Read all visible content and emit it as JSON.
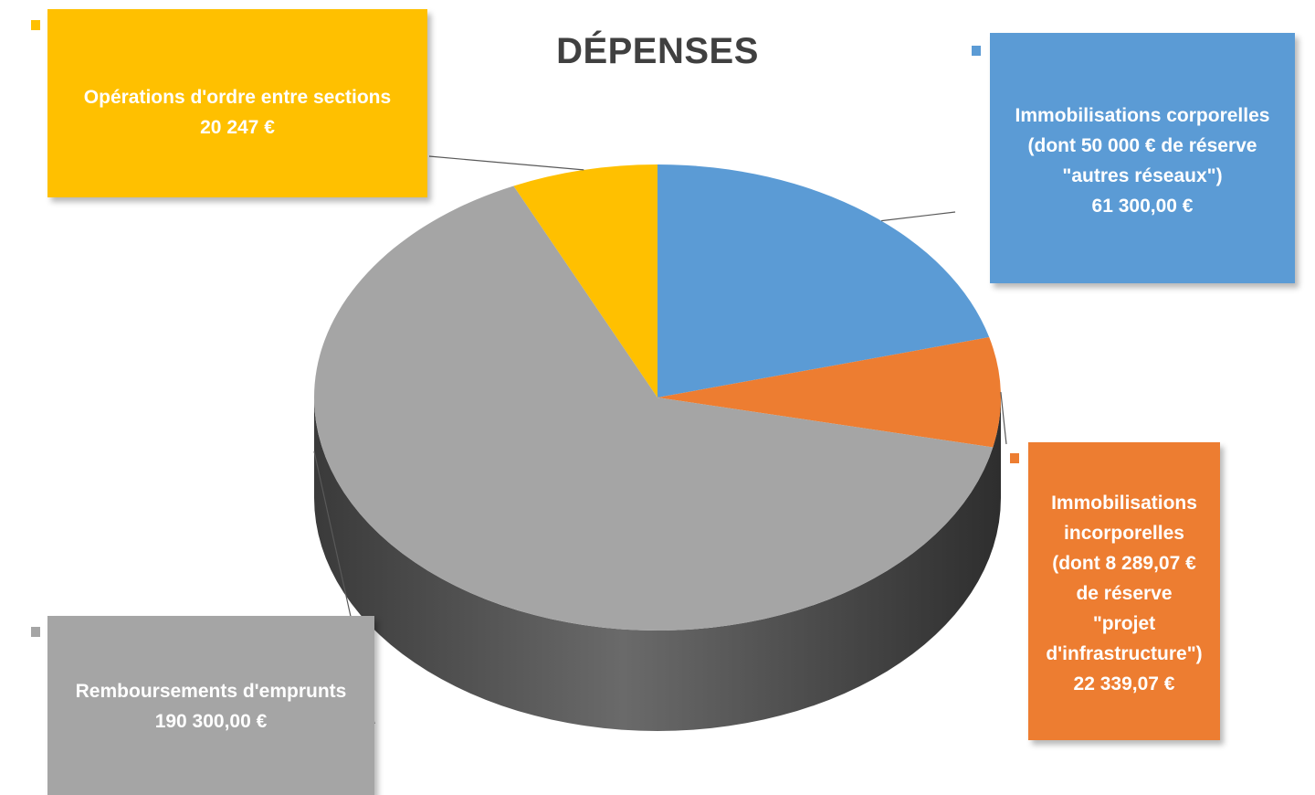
{
  "chart_data": {
    "type": "pie",
    "title": "DÉPENSES",
    "unit": "€",
    "slices": [
      {
        "key": "corporelles",
        "name": "Immobilisations corporelles",
        "label_lines": [
          "Immobilisations corporelles",
          "(dont 50 000 € de réserve",
          "\"autres réseaux\")",
          "61 300,00 €"
        ],
        "value": 61300.0,
        "color": "#5B9BD5",
        "side_color": "#3F77AC"
      },
      {
        "key": "incorporelles",
        "name": "Immobilisations incorporelles",
        "label_lines": [
          "Immobilisations",
          "incorporelles",
          "(dont 8 289,07 €",
          "de réserve",
          "\"projet",
          "d'infrastructure\")",
          "22 339,07 €"
        ],
        "value": 22339.07,
        "color": "#ED7D31",
        "side_color": "#B85A1E"
      },
      {
        "key": "emprunts",
        "name": "Remboursements d'emprunts",
        "label_lines": [
          "Remboursements d'emprunts",
          "190 300,00 €"
        ],
        "value": 190300.0,
        "color": "#A5A5A5",
        "side_color": "#4A4A4A"
      },
      {
        "key": "ordre",
        "name": "Opérations d'ordre entre sections",
        "label_lines": [
          "Opérations d'ordre entre sections",
          "20 247 €"
        ],
        "value": 20247,
        "color": "#FFC000",
        "side_color": "#C89600"
      }
    ]
  }
}
